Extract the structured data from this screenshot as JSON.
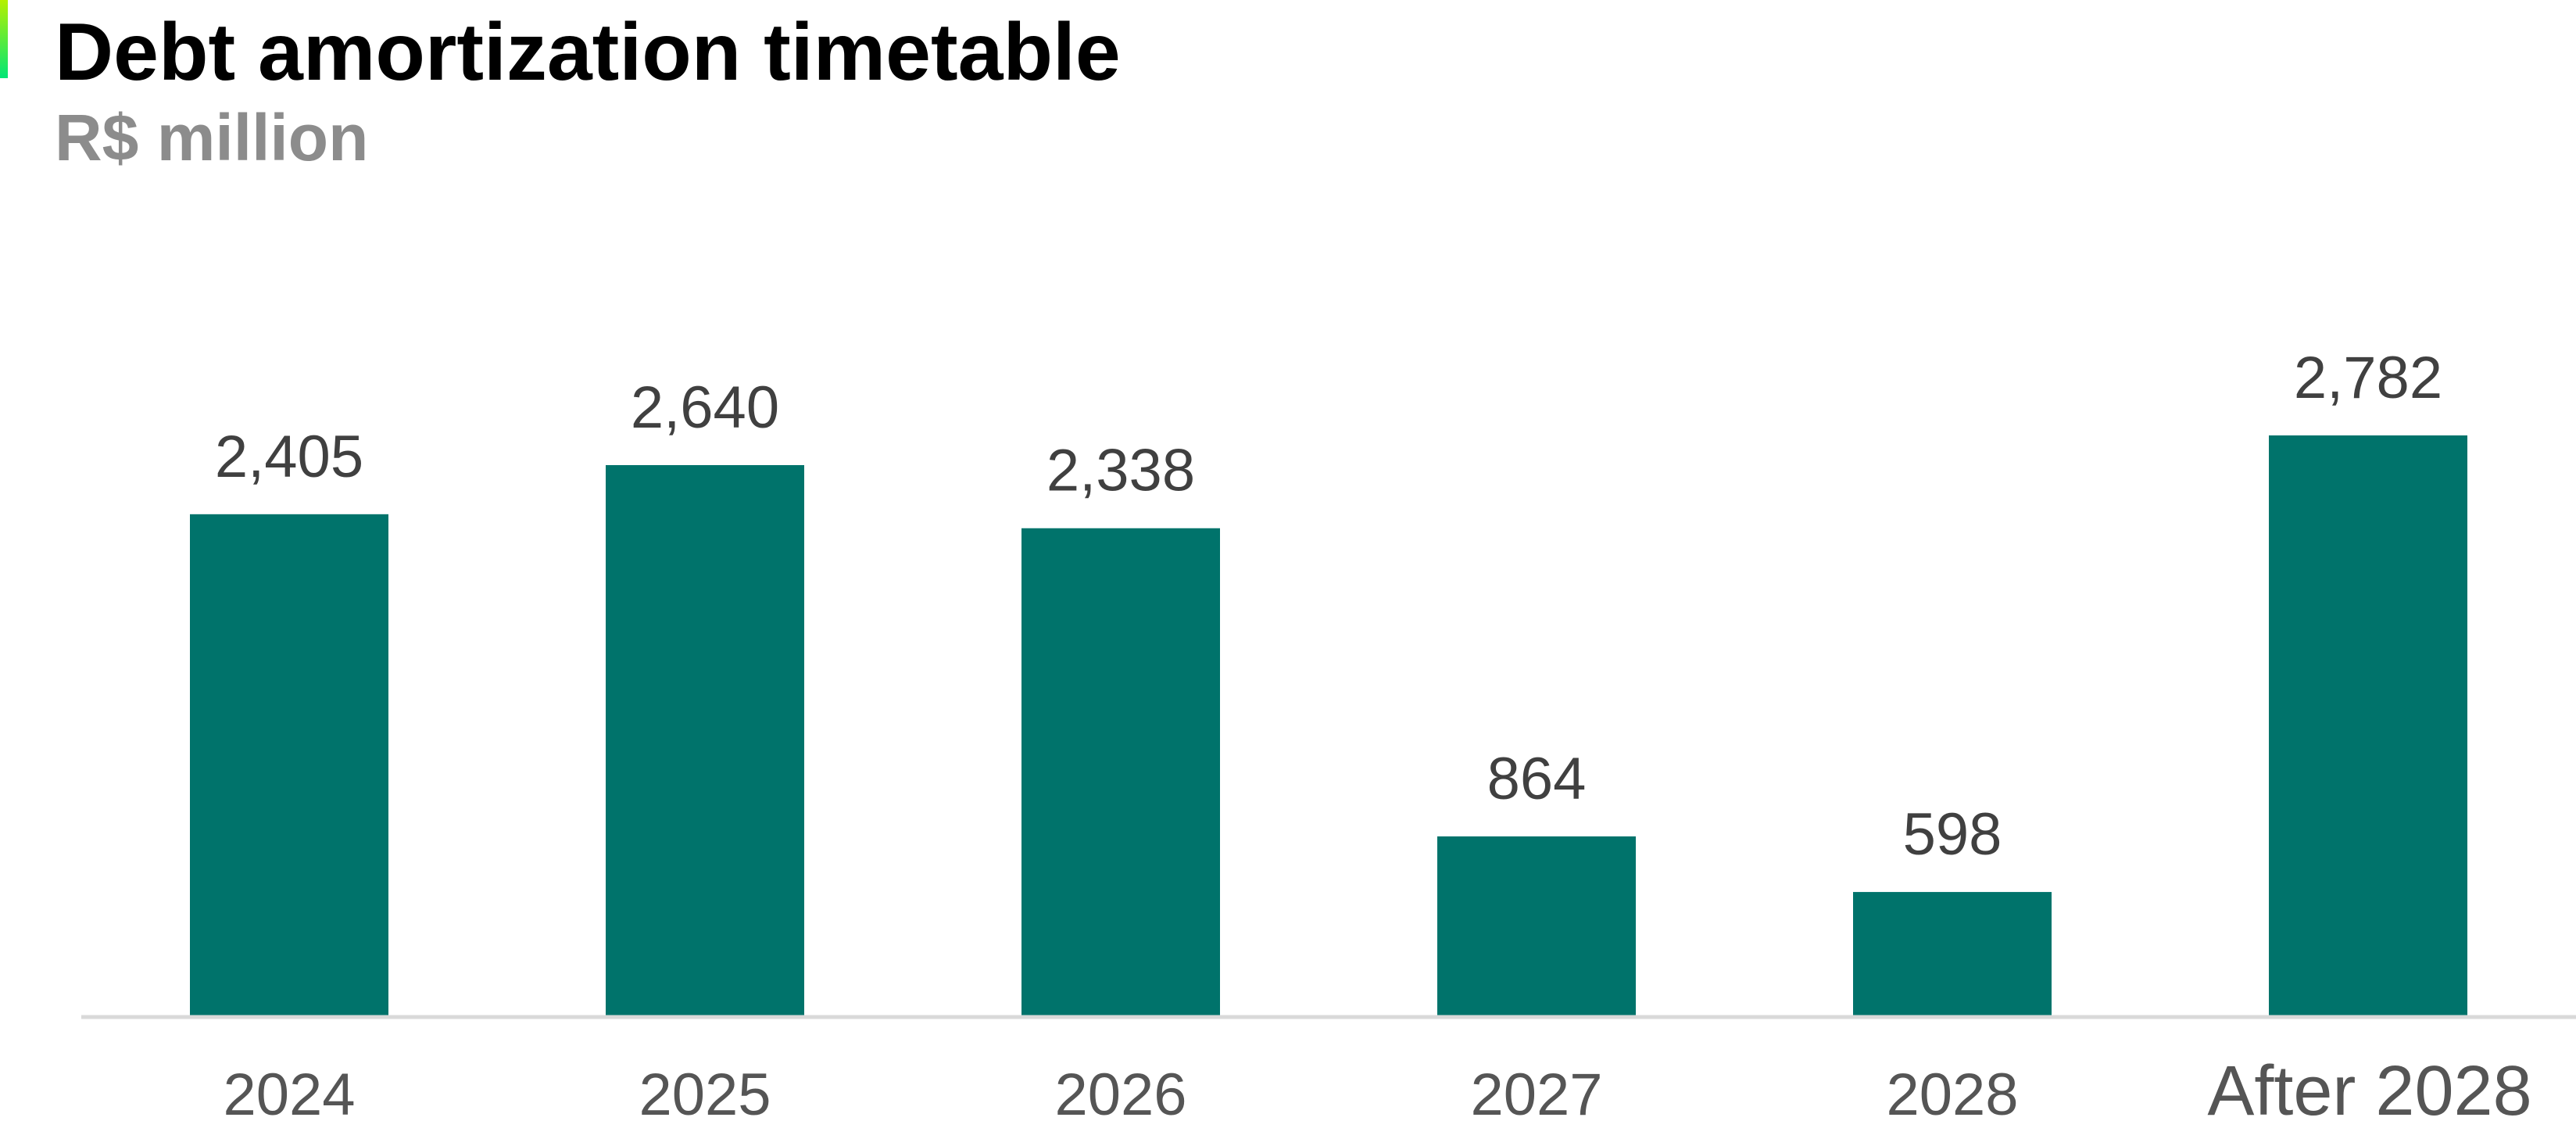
{
  "header": {
    "title": "Debt amortization timetable",
    "subtitle": "R$ million"
  },
  "colors": {
    "bar": "#00736B",
    "accent_top": "#B5F000",
    "accent_bottom": "#00E676",
    "title": "#000000",
    "subtitle": "#8C8C8C",
    "value_label": "#404040",
    "category_label": "#555555",
    "axis": "#D9D9D9"
  },
  "chart_data": {
    "type": "bar",
    "title": "Debt amortization timetable",
    "subtitle": "R$ million",
    "categories": [
      "2024",
      "2025",
      "2026",
      "2027",
      "2028",
      "After 2028"
    ],
    "values": [
      2405,
      2640,
      2338,
      864,
      598,
      2782
    ],
    "value_labels": [
      "2,405",
      "2,640",
      "2,338",
      "864",
      "598",
      "2,782"
    ],
    "xlabel": "",
    "ylabel": "",
    "ylim": [
      0,
      2782
    ],
    "grid": false,
    "legend": "none",
    "data_labels": "above-bar"
  }
}
